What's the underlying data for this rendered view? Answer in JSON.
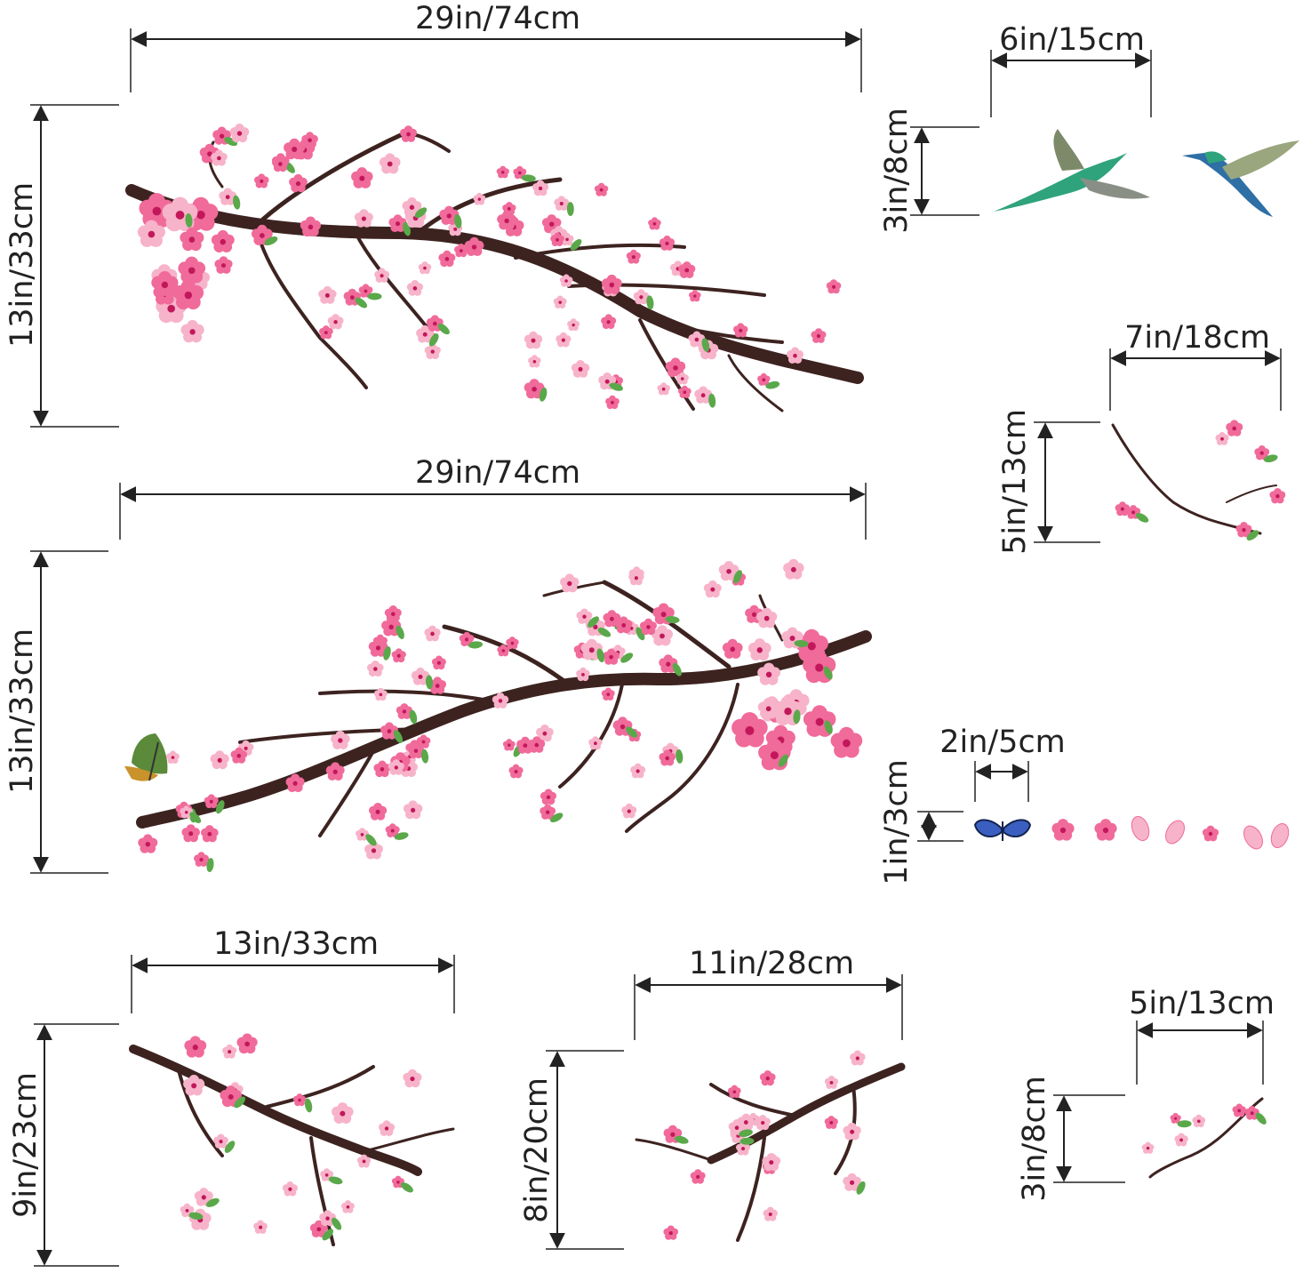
{
  "decal_set": {
    "main_branch_top": {
      "width_label": "29in/74cm",
      "height_label": "13in/33cm"
    },
    "main_branch_bottom": {
      "width_label": "29in/74cm",
      "height_label": "13in/33cm"
    },
    "hummingbirds": {
      "width_label": "6in/15cm",
      "height_label": "3in/8cm"
    },
    "small_sprig_right": {
      "width_label": "7in/18cm",
      "height_label": "5in/13cm"
    },
    "butterfly_petals": {
      "width_label": "2in/5cm",
      "height_label": "1in/3cm"
    },
    "corner_branch_left": {
      "width_label": "13in/33cm",
      "height_label": "9in/23cm"
    },
    "corner_branch_mid": {
      "width_label": "11in/28cm",
      "height_label": "8in/20cm"
    },
    "tiny_sprig": {
      "width_label": "5in/13cm",
      "height_label": "3in/8cm"
    }
  },
  "colors": {
    "blossom_pink": "#f06a9a",
    "blossom_light": "#f7b3c9",
    "branch_brown": "#3d2320",
    "leaf_green": "#5aa84a",
    "dimension_line": "#222222",
    "butterfly_blue": "#3b5fc0",
    "hummingbird_green": "#2fa37c"
  }
}
